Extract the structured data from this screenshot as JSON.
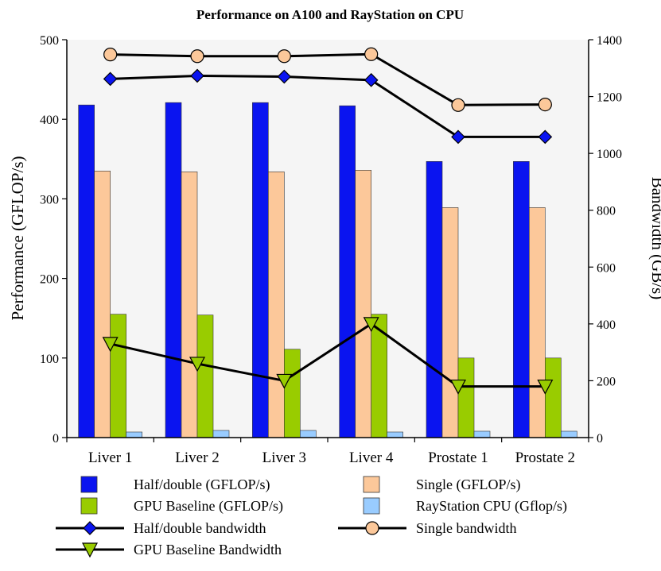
{
  "chart_data": {
    "type": "bar",
    "title": "Performance on A100 and RayStation on CPU",
    "ylabel": "Performance (GFLOP/s)",
    "y2label": "Bandwidth (GB/s)",
    "ylim": [
      0,
      500
    ],
    "y2lim": [
      0,
      1400
    ],
    "yticks": [
      "0",
      "100",
      "200",
      "300",
      "400",
      "500"
    ],
    "y2ticks": [
      "0",
      "200",
      "400",
      "600",
      "800",
      "1000",
      "1200",
      "1400"
    ],
    "categories": [
      "Liver 1",
      "Liver 2",
      "Liver 3",
      "Liver 4",
      "Prostate 1",
      "Prostate 2"
    ],
    "series": [
      {
        "name": "Half/double (GFLOP/s)",
        "kind": "bar",
        "axis": "left",
        "color": "#0a14f0",
        "values": [
          418,
          421,
          421,
          417,
          347,
          347
        ]
      },
      {
        "name": "Single (GFLOP/s)",
        "kind": "bar",
        "axis": "left",
        "color": "#fcc89a",
        "values": [
          335,
          334,
          334,
          336,
          289,
          289
        ]
      },
      {
        "name": "GPU Baseline (GFLOP/s)",
        "kind": "bar",
        "axis": "left",
        "color": "#99cc00",
        "values": [
          155,
          154,
          111,
          155,
          100,
          100
        ]
      },
      {
        "name": "RayStation CPU (Gflop/s)",
        "kind": "bar",
        "axis": "left",
        "color": "#99ccff",
        "values": [
          7,
          9,
          9,
          7,
          8,
          8
        ]
      },
      {
        "name": "Half/double bandwidth",
        "kind": "line",
        "axis": "right",
        "marker": "diamond",
        "color": "#0a14f0",
        "values": [
          1262,
          1273,
          1270,
          1258,
          1058,
          1058
        ]
      },
      {
        "name": "Single bandwidth",
        "kind": "line",
        "axis": "right",
        "marker": "circle",
        "color": "#fcc89a",
        "values": [
          1348,
          1342,
          1342,
          1349,
          1170,
          1172
        ]
      },
      {
        "name": "GPU Baseline Bandwidth",
        "kind": "line",
        "axis": "right",
        "marker": "triangle-down",
        "color": "#99cc00",
        "values": [
          330,
          260,
          200,
          400,
          180,
          180
        ]
      }
    ],
    "legend": {
      "placement": "bottom",
      "rows": [
        [
          "Half/double (GFLOP/s)",
          "Single (GFLOP/s)"
        ],
        [
          "GPU Baseline (GFLOP/s)",
          "RayStation CPU (Gflop/s)"
        ],
        [
          "Half/double bandwidth",
          "Single bandwidth"
        ],
        [
          "GPU Baseline Bandwidth"
        ]
      ]
    },
    "colors": {
      "plot_background": "#f5f5f5",
      "axis": "#000000",
      "line": "#000000"
    }
  }
}
